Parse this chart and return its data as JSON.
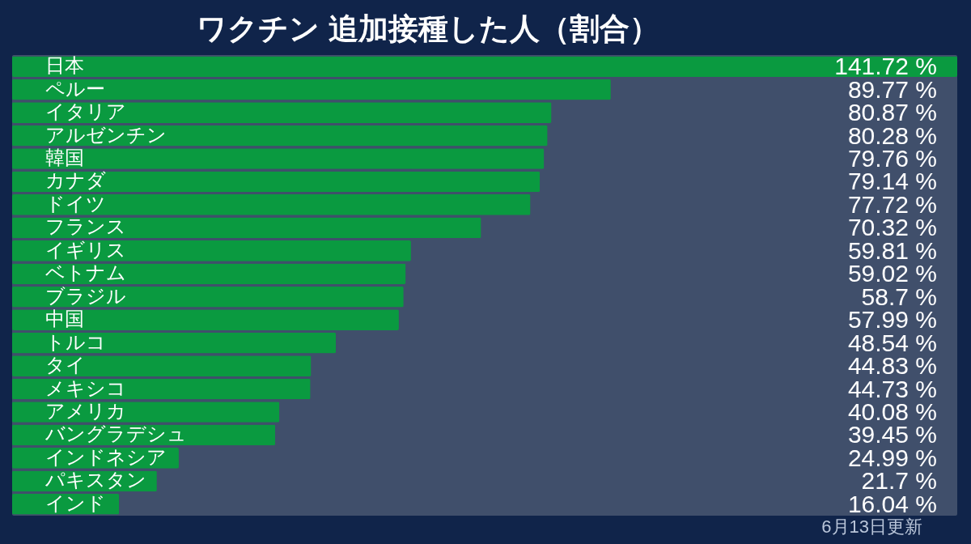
{
  "chart_data": {
    "type": "bar",
    "orientation": "horizontal",
    "title": "ワクチン 追加接種した人（割合）",
    "categories": [
      "日本",
      "ペルー",
      "イタリア",
      "アルゼンチン",
      "韓国",
      "カナダ",
      "ドイツ",
      "フランス",
      "イギリス",
      "ベトナム",
      "ブラジル",
      "中国",
      "トルコ",
      "タイ",
      "メキシコ",
      "アメリカ",
      "バングラデシュ",
      "インドネシア",
      "パキスタン",
      "インド"
    ],
    "values": [
      141.72,
      89.77,
      80.87,
      80.28,
      79.76,
      79.14,
      77.72,
      70.32,
      59.81,
      59.02,
      58.7,
      57.99,
      48.54,
      44.83,
      44.73,
      40.08,
      39.45,
      24.99,
      21.7,
      16.04
    ],
    "value_labels": [
      "141.72 %",
      "89.77 %",
      "80.87 %",
      "80.28 %",
      "79.76 %",
      "79.14 %",
      "77.72 %",
      "70.32 %",
      "59.81 %",
      "59.02 %",
      "58.7 %",
      "57.99 %",
      "48.54 %",
      "44.83 %",
      "44.73 %",
      "40.08 %",
      "39.45 %",
      "24.99 %",
      "21.7 %",
      "16.04 %"
    ],
    "color": "#0a9a40",
    "annotations": [
      "6月13日更新"
    ]
  }
}
